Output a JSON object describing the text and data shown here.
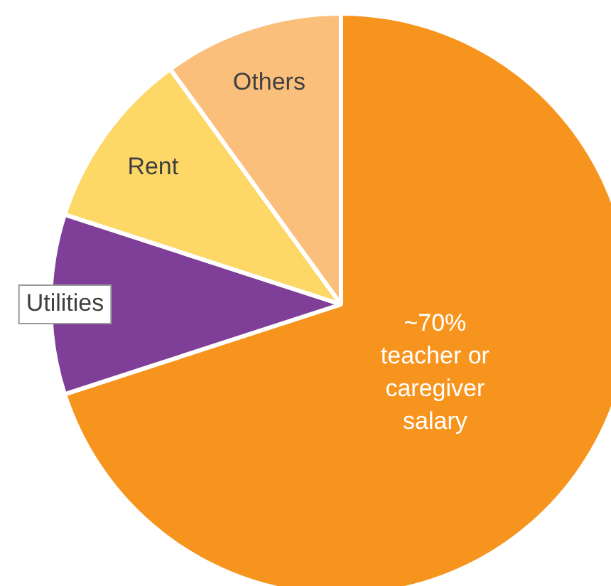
{
  "chart_data": {
    "type": "pie",
    "categories": [
      "teacher or caregiver salary",
      "Utilities",
      "Rent",
      "Others"
    ],
    "values": [
      70,
      10,
      10,
      10
    ],
    "colors": [
      "#f7941d",
      "#7f3f98",
      "#fdd867",
      "#fbbf7c"
    ],
    "value_labels": [
      "~70%",
      null,
      null,
      null
    ],
    "legend": false
  }
}
